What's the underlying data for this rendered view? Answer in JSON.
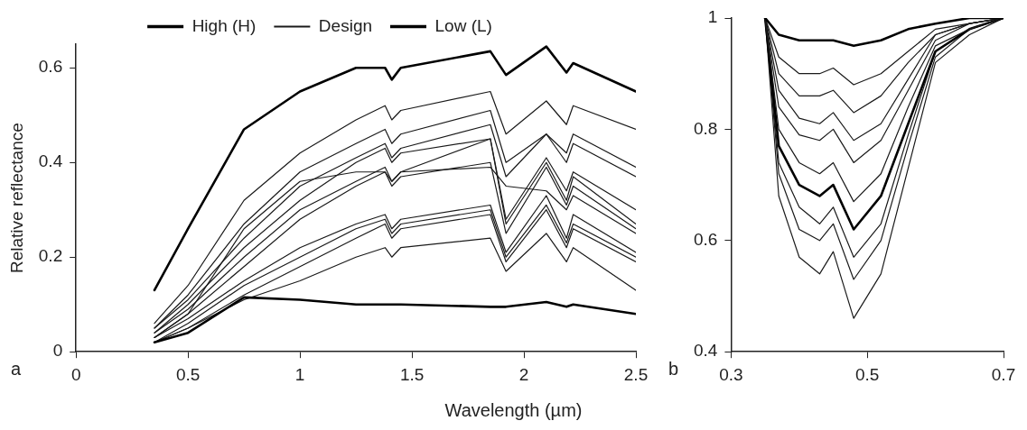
{
  "chart_data": [
    {
      "type": "line",
      "ylabel": "Relative reflectance",
      "xlabel": "Wavelength (µm)",
      "annotations": [
        "a"
      ],
      "x": [
        0.35,
        0.5,
        0.75,
        1,
        1.25,
        1.38,
        1.41,
        1.45,
        1.85,
        1.92,
        2.1,
        2.19,
        2.22,
        2.5
      ],
      "xlim": [
        0,
        2.5
      ],
      "xticks": [
        0,
        0.5,
        1,
        1.5,
        2,
        2.5
      ],
      "ylim": [
        0,
        0.65
      ],
      "yticks": [
        0,
        0.2,
        0.4,
        0.6
      ],
      "grid": false,
      "legend": "top",
      "marker": "none",
      "line_style": "solid",
      "series": [
        {
          "name": "High (H)",
          "color": "#000000",
          "values": [
            0.13,
            0.26,
            0.47,
            0.55,
            0.6,
            0.6,
            0.575,
            0.6,
            0.635,
            0.585,
            0.645,
            0.59,
            0.61,
            0.55
          ]
        },
        {
          "name": "Design",
          "color": "#1a1a1a",
          "values": [
            0.06,
            0.14,
            0.32,
            0.42,
            0.49,
            0.52,
            0.49,
            0.51,
            0.55,
            0.46,
            0.53,
            0.48,
            0.52,
            0.47
          ]
        },
        {
          "name": "Low (L)",
          "color": "#000000",
          "values": [
            0.02,
            0.04,
            0.115,
            0.11,
            0.1,
            0.1,
            0.1,
            0.1,
            0.095,
            0.095,
            0.105,
            0.095,
            0.1,
            0.08
          ]
        },
        {
          "color": "#1a1a1a",
          "values": [
            0.05,
            0.12,
            0.27,
            0.38,
            0.44,
            0.47,
            0.44,
            0.46,
            0.51,
            0.4,
            0.46,
            0.42,
            0.46,
            0.39
          ]
        },
        {
          "color": "#1a1a1a",
          "values": [
            0.05,
            0.11,
            0.24,
            0.35,
            0.41,
            0.44,
            0.41,
            0.43,
            0.48,
            0.37,
            0.46,
            0.4,
            0.44,
            0.37
          ]
        },
        {
          "color": "#1a1a1a",
          "values": [
            0.04,
            0.1,
            0.22,
            0.32,
            0.4,
            0.43,
            0.4,
            0.42,
            0.45,
            0.28,
            0.41,
            0.34,
            0.38,
            0.3
          ]
        },
        {
          "color": "#1a1a1a",
          "values": [
            0.04,
            0.09,
            0.2,
            0.3,
            0.36,
            0.39,
            0.36,
            0.38,
            0.45,
            0.27,
            0.4,
            0.32,
            0.37,
            0.27
          ]
        },
        {
          "color": "#1a1a1a",
          "values": [
            0.03,
            0.08,
            0.26,
            0.36,
            0.38,
            0.38,
            0.36,
            0.38,
            0.39,
            0.35,
            0.34,
            0.3,
            0.33,
            0.25
          ]
        },
        {
          "color": "#1a1a1a",
          "values": [
            0.03,
            0.08,
            0.18,
            0.28,
            0.35,
            0.38,
            0.35,
            0.37,
            0.4,
            0.25,
            0.39,
            0.31,
            0.35,
            0.26
          ]
        },
        {
          "color": "#1a1a1a",
          "values": [
            0.03,
            0.07,
            0.15,
            0.22,
            0.27,
            0.29,
            0.26,
            0.28,
            0.31,
            0.21,
            0.33,
            0.24,
            0.29,
            0.21
          ]
        },
        {
          "color": "#1a1a1a",
          "values": [
            0.02,
            0.06,
            0.14,
            0.2,
            0.26,
            0.28,
            0.25,
            0.27,
            0.3,
            0.2,
            0.31,
            0.23,
            0.27,
            0.2
          ]
        },
        {
          "color": "#1a1a1a",
          "values": [
            0.02,
            0.05,
            0.12,
            0.18,
            0.24,
            0.27,
            0.24,
            0.26,
            0.29,
            0.19,
            0.3,
            0.22,
            0.26,
            0.19
          ]
        },
        {
          "color": "#1a1a1a",
          "values": [
            0.02,
            0.05,
            0.11,
            0.15,
            0.2,
            0.22,
            0.2,
            0.22,
            0.24,
            0.17,
            0.25,
            0.19,
            0.22,
            0.13
          ]
        }
      ]
    },
    {
      "type": "line",
      "annotations": [
        "b"
      ],
      "x": [
        0.35,
        0.37,
        0.4,
        0.43,
        0.45,
        0.48,
        0.52,
        0.56,
        0.6,
        0.65,
        0.7
      ],
      "xlim": [
        0.3,
        0.7
      ],
      "xticks": [
        0.3,
        0.5,
        0.7
      ],
      "ylim": [
        0.4,
        1
      ],
      "yticks": [
        0.4,
        0.6,
        0.8,
        1
      ],
      "grid": false,
      "marker": "none",
      "line_style": "solid",
      "series": [
        {
          "color": "#000000",
          "values": [
            1,
            0.97,
            0.96,
            0.96,
            0.96,
            0.95,
            0.96,
            0.98,
            0.99,
            1,
            1
          ]
        },
        {
          "color": "#1a1a1a",
          "values": [
            1,
            0.93,
            0.9,
            0.9,
            0.91,
            0.88,
            0.9,
            0.94,
            0.98,
            0.99,
            1
          ]
        },
        {
          "color": "#1a1a1a",
          "values": [
            1,
            0.9,
            0.86,
            0.86,
            0.87,
            0.83,
            0.86,
            0.92,
            0.97,
            0.99,
            1
          ]
        },
        {
          "color": "#1a1a1a",
          "values": [
            1,
            0.87,
            0.82,
            0.81,
            0.83,
            0.78,
            0.81,
            0.89,
            0.97,
            0.99,
            1
          ]
        },
        {
          "color": "#1a1a1a",
          "values": [
            1,
            0.84,
            0.79,
            0.78,
            0.8,
            0.74,
            0.78,
            0.87,
            0.96,
            0.99,
            1
          ]
        },
        {
          "color": "#1a1a1a",
          "values": [
            1,
            0.8,
            0.74,
            0.72,
            0.74,
            0.67,
            0.72,
            0.84,
            0.95,
            0.98,
            1
          ]
        },
        {
          "color": "#000000",
          "values": [
            1,
            0.77,
            0.7,
            0.68,
            0.7,
            0.62,
            0.68,
            0.81,
            0.94,
            0.98,
            1
          ]
        },
        {
          "color": "#1a1a1a",
          "values": [
            1,
            0.74,
            0.66,
            0.63,
            0.66,
            0.57,
            0.63,
            0.79,
            0.94,
            0.98,
            1
          ]
        },
        {
          "color": "#1a1a1a",
          "values": [
            1,
            0.72,
            0.62,
            0.6,
            0.63,
            0.53,
            0.6,
            0.77,
            0.93,
            0.98,
            1
          ]
        },
        {
          "color": "#1a1a1a",
          "values": [
            1,
            0.68,
            0.57,
            0.54,
            0.58,
            0.46,
            0.54,
            0.73,
            0.92,
            0.97,
            1
          ]
        }
      ]
    }
  ]
}
